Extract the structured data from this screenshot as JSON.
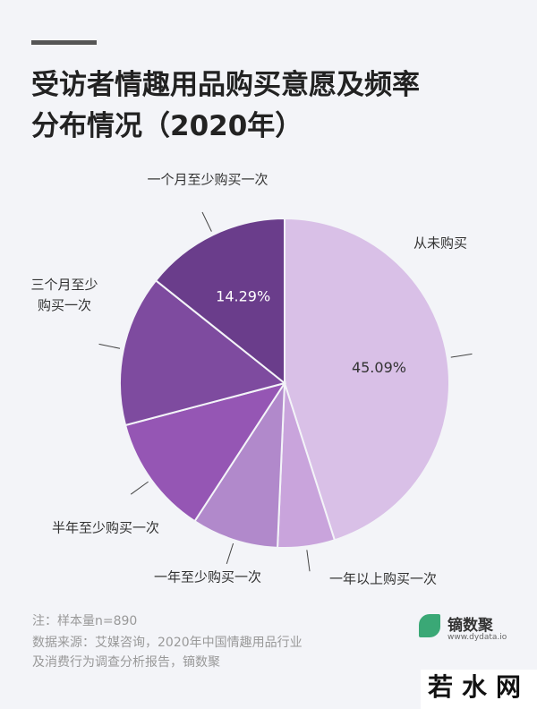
{
  "chart_data": {
    "type": "pie",
    "title": "受访者情趣用品购买意愿及频率\n分布情况（2020年）",
    "categories": [
      "从未购买",
      "一年以上购买一次",
      "一年至少购买一次",
      "半年至少购买一次",
      "三个月至少\n购买一次",
      "一个月至少购买一次"
    ],
    "values": [
      45.09,
      5.6,
      8.5,
      11.7,
      14.82,
      14.29
    ],
    "value_labels": [
      "45.09%",
      null,
      null,
      null,
      null,
      "14.29%"
    ],
    "colors": [
      "#d9c0e7",
      "#c9a4dc",
      "#b189cb",
      "#9556b4",
      "#7e4b9f",
      "#6a3d8b"
    ],
    "note": "注：样本量n=890",
    "source": "数据来源：艾媒咨询，2020年中国情趣用品行业\n及消费行为调查分析报告，镝数聚",
    "brand": "镝数聚",
    "brand_url": "www.dydata.io",
    "watermark": "若水网"
  }
}
